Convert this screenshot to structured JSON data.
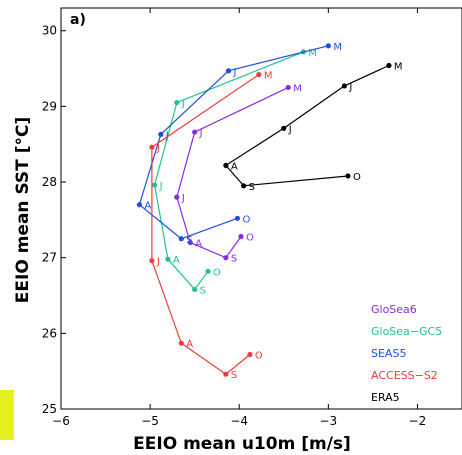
{
  "chart_data": {
    "type": "line",
    "panel_label": "a)",
    "xlabel": "EEIO mean u10m [m/s]",
    "ylabel": "EEIO mean SST [°C]",
    "xlim": [
      -6,
      -1.5
    ],
    "ylim": [
      25,
      30.3
    ],
    "x_ticks": [
      -6,
      -5,
      -4,
      -3,
      -2
    ],
    "x_tick_labels": [
      "−6",
      "−5",
      "−4",
      "−3",
      "−2"
    ],
    "y_ticks": [
      25,
      26,
      27,
      28,
      29,
      30
    ],
    "y_tick_labels": [
      "25",
      "26",
      "27",
      "28",
      "29",
      "30"
    ],
    "legend_position": "bottom-right",
    "series": [
      {
        "name": "GloSea6",
        "color": "#8a2be2",
        "points": [
          {
            "label": "M",
            "x": -3.45,
            "y": 29.25
          },
          {
            "label": "J",
            "x": -4.5,
            "y": 28.66
          },
          {
            "label": "J",
            "x": -4.7,
            "y": 27.8
          },
          {
            "label": "A",
            "x": -4.55,
            "y": 27.2
          },
          {
            "label": "S",
            "x": -4.15,
            "y": 27.0
          },
          {
            "label": "O",
            "x": -3.98,
            "y": 27.28
          }
        ]
      },
      {
        "name": "GloSea−GC5",
        "color": "#1fc48a",
        "points": [
          {
            "label": "M",
            "x": -3.28,
            "y": 29.72
          },
          {
            "label": "J",
            "x": -4.7,
            "y": 29.05
          },
          {
            "label": "J",
            "x": -4.95,
            "y": 27.96
          },
          {
            "label": "A",
            "x": -4.8,
            "y": 26.98
          },
          {
            "label": "S",
            "x": -4.5,
            "y": 26.58
          },
          {
            "label": "O",
            "x": -4.35,
            "y": 26.82
          }
        ]
      },
      {
        "name": "SEAS5",
        "color": "#1f4fe0",
        "points": [
          {
            "label": "M",
            "x": -3.0,
            "y": 29.8
          },
          {
            "label": "J",
            "x": -4.12,
            "y": 29.47
          },
          {
            "label": "J",
            "x": -4.88,
            "y": 28.63
          },
          {
            "label": "A",
            "x": -5.12,
            "y": 27.7
          },
          {
            "label": "S",
            "x": -4.65,
            "y": 27.25
          },
          {
            "label": "O",
            "x": -4.02,
            "y": 27.52
          }
        ]
      },
      {
        "name": "ACCESS−S2",
        "color": "#ee3b3b",
        "points": [
          {
            "label": "M",
            "x": -3.78,
            "y": 29.42
          },
          {
            "label": "J",
            "x": -4.98,
            "y": 28.46
          },
          {
            "label": "J",
            "x": -4.98,
            "y": 26.96
          },
          {
            "label": "A",
            "x": -4.65,
            "y": 25.87
          },
          {
            "label": "S",
            "x": -4.15,
            "y": 25.46
          },
          {
            "label": "O",
            "x": -3.88,
            "y": 25.72
          }
        ]
      },
      {
        "name": "ERA5",
        "color": "#000000",
        "points": [
          {
            "label": "M",
            "x": -2.32,
            "y": 29.54
          },
          {
            "label": "J",
            "x": -2.82,
            "y": 29.27
          },
          {
            "label": "J",
            "x": -3.5,
            "y": 28.71
          },
          {
            "label": "A",
            "x": -4.15,
            "y": 28.22
          },
          {
            "label": "S",
            "x": -3.95,
            "y": 27.95
          },
          {
            "label": "O",
            "x": -2.78,
            "y": 28.08
          }
        ]
      }
    ]
  }
}
